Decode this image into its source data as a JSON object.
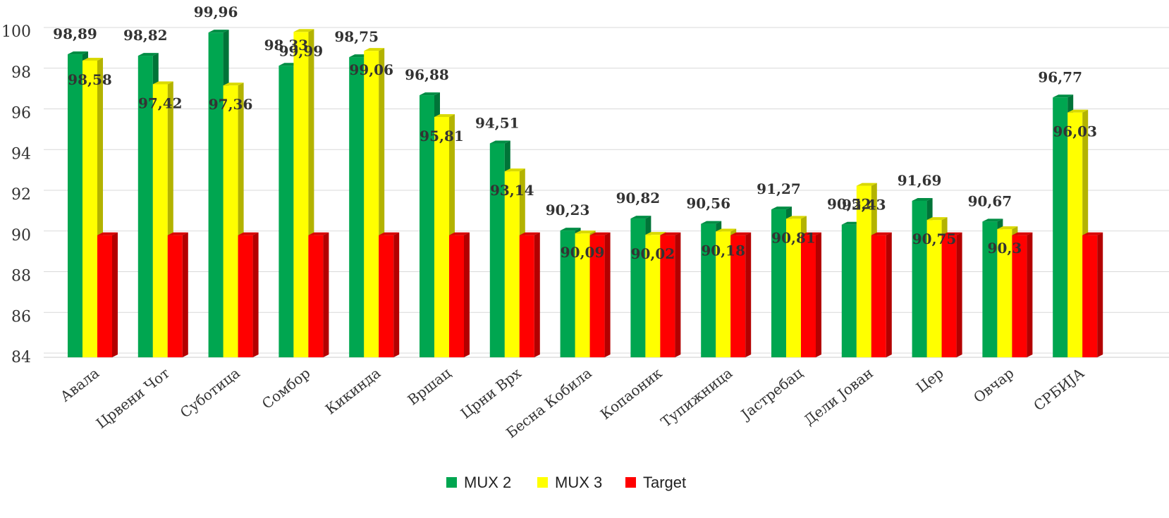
{
  "chart_data": {
    "type": "bar",
    "categories": [
      "Авала",
      "Црвени Чот",
      "Суботица",
      "Сомбор",
      "Кикинда",
      "Вршац",
      "Црни Врх",
      "Бесна Кобила",
      "Копаоник",
      "Тупижница",
      "Јастребац",
      "Дели Јован",
      "Цер",
      "Овчар",
      "СРБИЈА"
    ],
    "series": [
      {
        "name": "MUX 2",
        "color": "#00a650",
        "values": [
          98.89,
          98.82,
          99.96,
          98.33,
          98.75,
          96.88,
          94.51,
          90.23,
          90.82,
          90.56,
          91.27,
          90.52,
          91.69,
          90.67,
          96.77
        ]
      },
      {
        "name": "MUX 3",
        "color": "#ffff00",
        "values": [
          98.58,
          97.42,
          97.36,
          99.99,
          99.06,
          95.81,
          93.14,
          90.09,
          90.02,
          90.18,
          90.81,
          92.43,
          90.75,
          90.3,
          96.03
        ]
      },
      {
        "name": "Target",
        "color": "#ff0000",
        "values": [
          90,
          90,
          90,
          90,
          90,
          90,
          90,
          90,
          90,
          90,
          90,
          90,
          90,
          90,
          90
        ]
      }
    ],
    "value_labels": [
      [
        "98,89",
        "98,82",
        "99,96",
        "98,33",
        "98,75",
        "96,88",
        "94,51",
        "90,23",
        "90,82",
        "90,56",
        "91,27",
        "90,52",
        "91,69",
        "90,67",
        "96,77"
      ],
      [
        "98,58",
        "97,42",
        "97,36",
        "99,99",
        "99,06",
        "95,81",
        "93,14",
        "90,09",
        "90,02",
        "90,18",
        "90,81",
        "92,43",
        "90,75",
        "90,3",
        "96,03"
      ]
    ],
    "yticks": [
      "84",
      "86",
      "88",
      "90",
      "92",
      "94",
      "96",
      "98",
      "100"
    ],
    "ylim": [
      84,
      100
    ],
    "grid": true,
    "legend_position": "bottom",
    "style": "3d-clustered-columns"
  }
}
